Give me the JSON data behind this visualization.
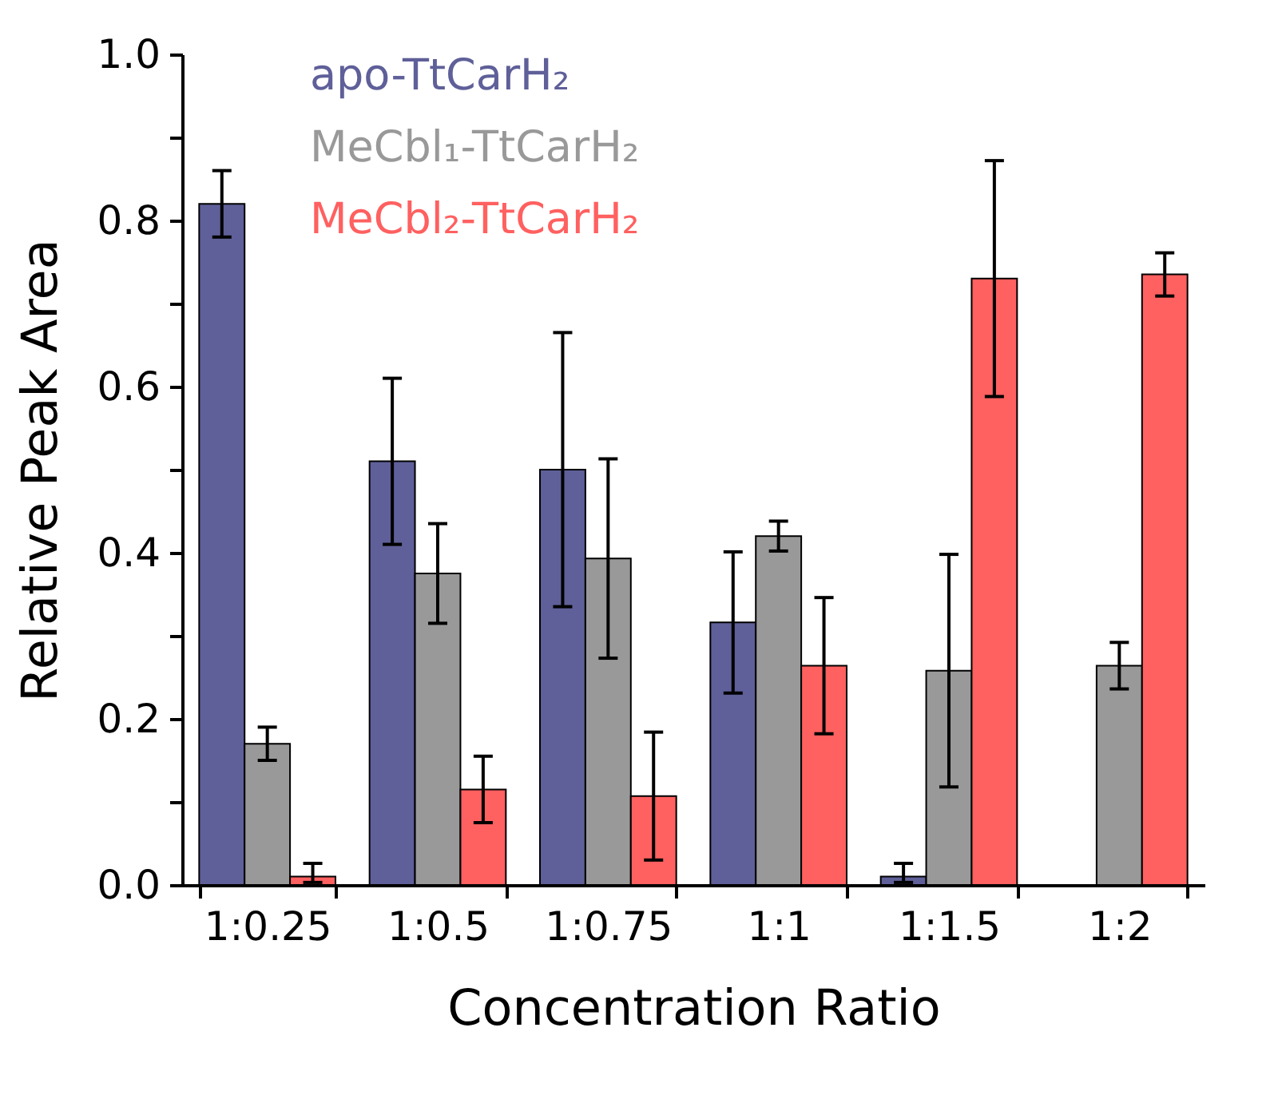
{
  "chart_data": {
    "type": "bar",
    "xlabel": "Concentration Ratio",
    "ylabel": "Relative Peak Area",
    "categories": [
      "1:0.25",
      "1:0.5",
      "1:0.75",
      "1:1",
      "1:1.5",
      "1:2"
    ],
    "series": [
      {
        "name": "apo-TtCarH₂",
        "color": "#5f5f99",
        "values": [
          0.82,
          0.51,
          0.5,
          0.316,
          0.01,
          null
        ],
        "errors": [
          0.04,
          0.1,
          0.165,
          0.085,
          [
            0.003,
            0.026
          ],
          null
        ]
      },
      {
        "name": "MeCbl₁-TtCarH₂",
        "color": "#999999",
        "values": [
          0.17,
          0.375,
          0.393,
          0.42,
          0.258,
          0.264
        ],
        "errors": [
          0.02,
          0.06,
          0.12,
          0.018,
          0.14,
          0.028
        ]
      },
      {
        "name": "MeCbl₂-TtCarH₂",
        "color": "#ff6060",
        "values": [
          0.01,
          0.115,
          0.107,
          0.264,
          0.73,
          0.735
        ],
        "errors": [
          [
            0.003,
            0.026
          ],
          0.04,
          0.077,
          0.082,
          0.142,
          0.026
        ]
      }
    ],
    "ylim": [
      0,
      1
    ],
    "yticks": [
      {
        "value": 0,
        "label": "0.0"
      },
      {
        "value": 0.1,
        "label": null
      },
      {
        "value": 0.2,
        "label": "0.2"
      },
      {
        "value": 0.3,
        "label": null
      },
      {
        "value": 0.4,
        "label": "0.4"
      },
      {
        "value": 0.5,
        "label": null
      },
      {
        "value": 0.6,
        "label": "0.6"
      },
      {
        "value": 0.7,
        "label": null
      },
      {
        "value": 0.8,
        "label": "0.8"
      },
      {
        "value": 0.9,
        "label": null
      },
      {
        "value": 1,
        "label": "1.0"
      }
    ],
    "legend": "top",
    "grid": false
  }
}
